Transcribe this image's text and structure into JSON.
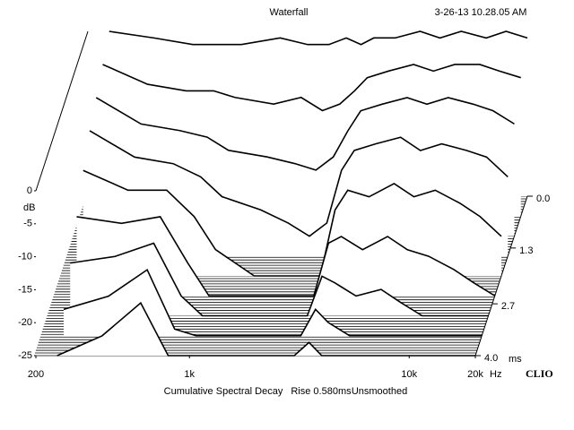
{
  "chart_data": {
    "type": "waterfall",
    "title": "Waterfall",
    "timestamp": "3-26-13 10.28.05 AM",
    "y_label": "dB",
    "x_unit": "Hz",
    "z_unit": "ms",
    "brand": "CLIO",
    "caption": [
      "Cumulative Spectral Decay",
      "Rise 0.580ms",
      "Unsmoothed"
    ],
    "log_x": true,
    "xlim": [
      200,
      20000
    ],
    "xticks": [
      200,
      {
        "value": 1000,
        "label": "1k"
      },
      {
        "value": 10000,
        "label": "10k"
      },
      {
        "value": 20000,
        "label": "20k"
      }
    ],
    "ylim": [
      -25,
      0
    ],
    "yticks": [
      0,
      -5,
      -10,
      -15,
      -20,
      -25
    ],
    "zlim": [
      0,
      4
    ],
    "zticks": [
      {
        "value": 0,
        "label": "0.0"
      },
      1.3,
      2.7,
      {
        "value": 4,
        "label": "4.0"
      }
    ],
    "frequencies": [
      250,
      400,
      600,
      800,
      1000,
      1500,
      2000,
      2500,
      3000,
      3500,
      4000,
      5000,
      6500,
      8000,
      10000,
      13000,
      16000,
      20000
    ],
    "series": [
      {
        "time": 0,
        "values": [
          0,
          -1,
          -2,
          -2,
          -2,
          -1,
          -2,
          -2,
          -1,
          -2,
          -1,
          -1,
          0,
          -1,
          0,
          -1,
          0,
          -1
        ]
      },
      {
        "time": 0.5,
        "values": [
          -2,
          -5,
          -6,
          -6,
          -7,
          -8,
          -7,
          -9,
          -8,
          -6,
          -4,
          -3,
          -2,
          -3,
          -2,
          -2,
          -3,
          -4
        ]
      },
      {
        "time": 1,
        "values": [
          -4,
          -8,
          -9,
          -10,
          -12,
          -13,
          -14,
          -15,
          -13,
          -9,
          -6,
          -5,
          -4,
          -5,
          -4,
          -5,
          -6,
          -8
        ]
      },
      {
        "time": 1.5,
        "values": [
          -6,
          -10,
          -11,
          -13,
          -16,
          -18,
          -20,
          -22,
          -20,
          -12,
          -9,
          -8,
          -7,
          -9,
          -8,
          -9,
          -10,
          -13
        ]
      },
      {
        "time": 2,
        "values": [
          -9,
          -12,
          -12,
          -16,
          -21,
          -25,
          -25,
          -25,
          -25,
          -15,
          -12,
          -13,
          -11,
          -13,
          -12,
          -14,
          -16,
          -19
        ]
      },
      {
        "time": 2.5,
        "values": [
          -13,
          -14,
          -13,
          -20,
          -25,
          -25,
          -25,
          -25,
          -25,
          -17,
          -16,
          -18,
          -16,
          -18,
          -19,
          -21,
          -23,
          -25
        ]
      },
      {
        "time": 3,
        "values": [
          -17,
          -16,
          -14,
          -22,
          -25,
          -25,
          -25,
          -25,
          -25,
          -19,
          -20,
          -22,
          -21,
          -23,
          -25,
          -25,
          -25,
          -25
        ]
      },
      {
        "time": 3.5,
        "values": [
          -21,
          -19,
          -15,
          -24,
          -25,
          -25,
          -25,
          -25,
          -25,
          -21,
          -23,
          -25,
          -25,
          -25,
          -25,
          -25,
          -25,
          -25
        ]
      },
      {
        "time": 4,
        "values": [
          -25,
          -22,
          -17,
          -25,
          -25,
          -25,
          -25,
          -25,
          -25,
          -23,
          -25,
          -25,
          -25,
          -25,
          -25,
          -25,
          -25,
          -25
        ]
      }
    ]
  }
}
